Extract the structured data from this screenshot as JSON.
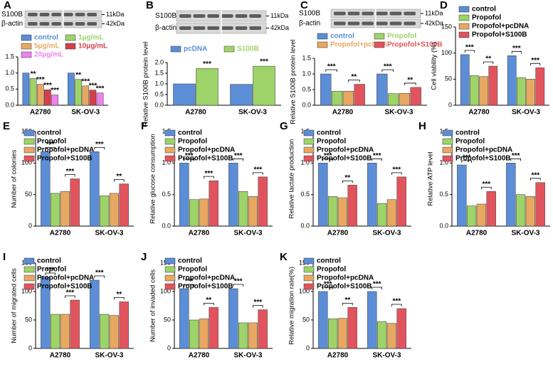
{
  "chart_data": [
    {
      "type": "bar",
      "panel": "A",
      "ylabel": "Relative S100B level",
      "categories": [
        "A2780",
        "SK-OV-3"
      ],
      "blot": {
        "rows": [
          "S100B",
          "β-actin"
        ],
        "sizes": [
          "11kDa",
          "42kDa"
        ]
      },
      "legend_text_colored": true,
      "series": [
        {
          "name": "control",
          "color": "#5b8ed6",
          "values": [
            1.0,
            1.0
          ]
        },
        {
          "name": "1μg/mL",
          "color": "#9ed36a",
          "values": [
            0.83,
            0.8
          ],
          "significance": [
            "**",
            "**"
          ]
        },
        {
          "name": "5μg/mL",
          "color": "#e8a862",
          "values": [
            0.65,
            0.6
          ],
          "significance": [
            "***",
            "***"
          ]
        },
        {
          "name": "10μg/mL",
          "color": "#d4404b",
          "values": [
            0.48,
            0.47
          ],
          "significance": [
            "***",
            "***"
          ]
        },
        {
          "name": "20μg/mL",
          "color": "#ee82ee",
          "values": [
            0.32,
            0.38
          ],
          "significance": [
            "***",
            "***"
          ]
        }
      ],
      "ylim": [
        0,
        1.5
      ],
      "yticks": [
        {
          "value": 0,
          "label": "0.0"
        },
        {
          "value": 0.5,
          "label": "0.5"
        },
        {
          "value": 1,
          "label": "1.0"
        },
        {
          "value": 1.5,
          "label": "1.5"
        }
      ]
    },
    {
      "type": "bar",
      "panel": "B",
      "ylabel": "Relative S100B protein level",
      "categories": [
        "A2780",
        "SK-OV-3"
      ],
      "blot": {
        "rows": [
          "S100B",
          "β-actin"
        ],
        "sizes": [
          "11kDa",
          "42kDa"
        ]
      },
      "legend_text_colored": true,
      "series": [
        {
          "name": "pcDNA",
          "color": "#5b8ed6",
          "values": [
            1.0,
            0.98
          ]
        },
        {
          "name": "S100B",
          "color": "#9ed36a",
          "values": [
            1.72,
            1.83
          ],
          "significance": [
            "***",
            "***"
          ]
        }
      ],
      "ylim": [
        0,
        2
      ],
      "yticks": [
        {
          "value": 0,
          "label": "0.0"
        },
        {
          "value": 0.5,
          "label": "0.5"
        },
        {
          "value": 1,
          "label": "1.0"
        },
        {
          "value": 1.5,
          "label": "1.5"
        },
        {
          "value": 2,
          "label": "2.0"
        }
      ]
    },
    {
      "type": "bar",
      "panel": "C",
      "ylabel": "Relative S100B protein level",
      "categories": [
        "A2780",
        "SK-OV-3"
      ],
      "blot": {
        "rows": [
          "S100B",
          "β-actin"
        ],
        "sizes": [
          "11kDa",
          "42kDa"
        ]
      },
      "legend_text_colored": true,
      "series": [
        {
          "name": "control",
          "color": "#5b8ed6",
          "values": [
            1.0,
            1.0
          ]
        },
        {
          "name": "Propofol",
          "color": "#9ed36a",
          "values": [
            0.45,
            0.37
          ]
        },
        {
          "name": "Propofol+pcDNA",
          "color": "#e8a862",
          "values": [
            0.45,
            0.38
          ]
        },
        {
          "name": "Propofol+S100B",
          "color": "#e2545d",
          "values": [
            0.67,
            0.57
          ]
        }
      ],
      "comparisons": [
        {
          "from": "control",
          "to": "Propofol",
          "labels": [
            "***",
            "***"
          ]
        },
        {
          "from": "Propofol+pcDNA",
          "to": "Propofol+S100B",
          "labels": [
            "**",
            "**"
          ]
        }
      ],
      "ylim": [
        0,
        1.5
      ],
      "yticks": [
        {
          "value": 0,
          "label": "0.0"
        },
        {
          "value": 0.5,
          "label": "0.5"
        },
        {
          "value": 1,
          "label": "1.0"
        },
        {
          "value": 1.5,
          "label": "1.5"
        }
      ]
    },
    {
      "type": "bar",
      "panel": "D",
      "ylabel": "Cell viability (%)",
      "categories": [
        "A2780",
        "SK-OV-3"
      ],
      "series": [
        {
          "name": "control",
          "color": "#5b8ed6",
          "values": [
            97,
            95
          ]
        },
        {
          "name": "Propofol",
          "color": "#9ed36a",
          "values": [
            57,
            53
          ]
        },
        {
          "name": "Propofol+pcDNA",
          "color": "#e8a862",
          "values": [
            55,
            50
          ]
        },
        {
          "name": "Propofol+S100B",
          "color": "#e2545d",
          "values": [
            75,
            72
          ]
        }
      ],
      "comparisons": [
        {
          "from": "control",
          "to": "Propofol",
          "labels": [
            "***",
            "***"
          ]
        },
        {
          "from": "Propofol+pcDNA",
          "to": "Propofol+S100B",
          "labels": [
            "**",
            "***"
          ]
        }
      ],
      "ylim": [
        0,
        150
      ],
      "yticks": [
        0,
        50,
        100,
        150
      ]
    },
    {
      "type": "bar",
      "panel": "E",
      "ylabel": "Number of colonies",
      "categories": [
        "A2780",
        "SK-OV-3"
      ],
      "series": [
        {
          "name": "control",
          "color": "#5b8ed6",
          "values": [
            118,
            118
          ]
        },
        {
          "name": "Propofol",
          "color": "#9ed36a",
          "values": [
            52,
            48
          ]
        },
        {
          "name": "Propofol+pcDNA",
          "color": "#e8a862",
          "values": [
            55,
            52
          ]
        },
        {
          "name": "Propofol+S100B",
          "color": "#e2545d",
          "values": [
            75,
            67
          ]
        }
      ],
      "comparisons": [
        {
          "from": "control",
          "to": "Propofol",
          "labels": [
            "***",
            "***"
          ]
        },
        {
          "from": "Propofol+pcDNA",
          "to": "Propofol+S100B",
          "labels": [
            "***",
            "**"
          ]
        }
      ],
      "ylim": [
        0,
        150
      ],
      "yticks": [
        0,
        50,
        100,
        150
      ]
    },
    {
      "type": "bar",
      "panel": "F",
      "ylabel": "Relative glucose consumption",
      "categories": [
        "A2780",
        "SK-OV-3"
      ],
      "series": [
        {
          "name": "control",
          "color": "#5b8ed6",
          "values": [
            1.0,
            1.0
          ]
        },
        {
          "name": "Propofol",
          "color": "#9ed36a",
          "values": [
            0.42,
            0.55
          ]
        },
        {
          "name": "Propofol+pcDNA",
          "color": "#e8a862",
          "values": [
            0.43,
            0.47
          ]
        },
        {
          "name": "Propofol+S100B",
          "color": "#e2545d",
          "values": [
            0.72,
            0.78
          ]
        }
      ],
      "comparisons": [
        {
          "from": "control",
          "to": "Propofol",
          "labels": [
            "***",
            "***"
          ]
        },
        {
          "from": "Propofol+pcDNA",
          "to": "Propofol+S100B",
          "labels": [
            "***",
            "***"
          ]
        }
      ],
      "ylim": [
        0,
        1.5
      ],
      "yticks": [
        {
          "value": 0,
          "label": "0.0"
        },
        {
          "value": 0.5,
          "label": "0.5"
        },
        {
          "value": 1,
          "label": "1.0"
        },
        {
          "value": 1.5,
          "label": "1.5"
        }
      ]
    },
    {
      "type": "bar",
      "panel": "G",
      "ylabel": "Relative lactate production",
      "categories": [
        "A2780",
        "SK-OV-3"
      ],
      "series": [
        {
          "name": "control",
          "color": "#5b8ed6",
          "values": [
            1.0,
            1.0
          ]
        },
        {
          "name": "Propofol",
          "color": "#9ed36a",
          "values": [
            0.47,
            0.36
          ]
        },
        {
          "name": "Propofol+pcDNA",
          "color": "#e8a862",
          "values": [
            0.45,
            0.42
          ]
        },
        {
          "name": "Propofol+S100B",
          "color": "#e2545d",
          "values": [
            0.65,
            0.78
          ]
        }
      ],
      "comparisons": [
        {
          "from": "control",
          "to": "Propofol",
          "labels": [
            "***",
            "***"
          ]
        },
        {
          "from": "Propofol+pcDNA",
          "to": "Propofol+S100B",
          "labels": [
            "**",
            "***"
          ]
        }
      ],
      "ylim": [
        0,
        1.5
      ],
      "yticks": [
        {
          "value": 0,
          "label": "0.0"
        },
        {
          "value": 0.5,
          "label": "0.5"
        },
        {
          "value": 1,
          "label": "1.0"
        },
        {
          "value": 1.5,
          "label": "1.5"
        }
      ]
    },
    {
      "type": "bar",
      "panel": "H",
      "ylabel": "Relative ATP level",
      "categories": [
        "A2780",
        "SK-OV-3"
      ],
      "series": [
        {
          "name": "control",
          "color": "#5b8ed6",
          "values": [
            0.97,
            1.0
          ]
        },
        {
          "name": "Propofol",
          "color": "#9ed36a",
          "values": [
            0.32,
            0.5
          ]
        },
        {
          "name": "Propofol+pcDNA",
          "color": "#e8a862",
          "values": [
            0.35,
            0.47
          ]
        },
        {
          "name": "Propofol+S100B",
          "color": "#e2545d",
          "values": [
            0.55,
            0.69
          ]
        }
      ],
      "comparisons": [
        {
          "from": "control",
          "to": "Propofol",
          "labels": [
            "***",
            "***"
          ]
        },
        {
          "from": "Propofol+pcDNA",
          "to": "Propofol+S100B",
          "labels": [
            "***",
            "***"
          ]
        }
      ],
      "ylim": [
        0,
        1.5
      ],
      "yticks": [
        {
          "value": 0,
          "label": "0.0"
        },
        {
          "value": 0.5,
          "label": "0.5"
        },
        {
          "value": 1,
          "label": "1.0"
        },
        {
          "value": 1.5,
          "label": "1.5"
        }
      ]
    },
    {
      "type": "bar",
      "panel": "I",
      "ylabel": "Number of migrated cells",
      "categories": [
        "A2780",
        "SK-OV-3"
      ],
      "series": [
        {
          "name": "control",
          "color": "#5b8ed6",
          "values": [
            125,
            120
          ]
        },
        {
          "name": "Propofol",
          "color": "#9ed36a",
          "values": [
            60,
            60
          ]
        },
        {
          "name": "Propofol+pcDNA",
          "color": "#e8a862",
          "values": [
            60,
            58
          ]
        },
        {
          "name": "Propofol+S100B",
          "color": "#e2545d",
          "values": [
            85,
            82
          ]
        }
      ],
      "comparisons": [
        {
          "from": "control",
          "to": "Propofol",
          "labels": [
            "***",
            "***"
          ]
        },
        {
          "from": "Propofol+pcDNA",
          "to": "Propofol+S100B",
          "labels": [
            "***",
            "**"
          ]
        }
      ],
      "ylim": [
        0,
        150
      ],
      "yticks": [
        0,
        50,
        100,
        150
      ]
    },
    {
      "type": "bar",
      "panel": "J",
      "ylabel": "Number of invaded cells",
      "categories": [
        "A2780",
        "SK-OV-3"
      ],
      "series": [
        {
          "name": "control",
          "color": "#5b8ed6",
          "values": [
            105,
            105
          ]
        },
        {
          "name": "Propofol",
          "color": "#9ed36a",
          "values": [
            50,
            45
          ]
        },
        {
          "name": "Propofol+pcDNA",
          "color": "#e8a862",
          "values": [
            52,
            45
          ]
        },
        {
          "name": "Propofol+S100B",
          "color": "#e2545d",
          "values": [
            72,
            68
          ]
        }
      ],
      "comparisons": [
        {
          "from": "control",
          "to": "Propofol",
          "labels": [
            "***",
            "***"
          ]
        },
        {
          "from": "Propofol+pcDNA",
          "to": "Propofol+S100B",
          "labels": [
            "**",
            "***"
          ]
        }
      ],
      "ylim": [
        0,
        150
      ],
      "yticks": [
        0,
        50,
        100,
        150
      ]
    },
    {
      "type": "bar",
      "panel": "K",
      "ylabel": "Relative migration rate(%)",
      "categories": [
        "A2780",
        "SK-OV-3"
      ],
      "series": [
        {
          "name": "control",
          "color": "#5b8ed6",
          "values": [
            100,
            100
          ]
        },
        {
          "name": "Propofol",
          "color": "#9ed36a",
          "values": [
            52,
            47
          ]
        },
        {
          "name": "Propofol+pcDNA",
          "color": "#e8a862",
          "values": [
            53,
            44
          ]
        },
        {
          "name": "Propofol+S100B",
          "color": "#e2545d",
          "values": [
            72,
            70
          ]
        }
      ],
      "comparisons": [
        {
          "from": "control",
          "to": "Propofol",
          "labels": [
            "***",
            "***"
          ]
        },
        {
          "from": "Propofol+pcDNA",
          "to": "Propofol+S100B",
          "labels": [
            "**",
            "***"
          ]
        }
      ],
      "ylim": [
        0,
        150
      ],
      "yticks": [
        0,
        50,
        100,
        150
      ]
    }
  ]
}
